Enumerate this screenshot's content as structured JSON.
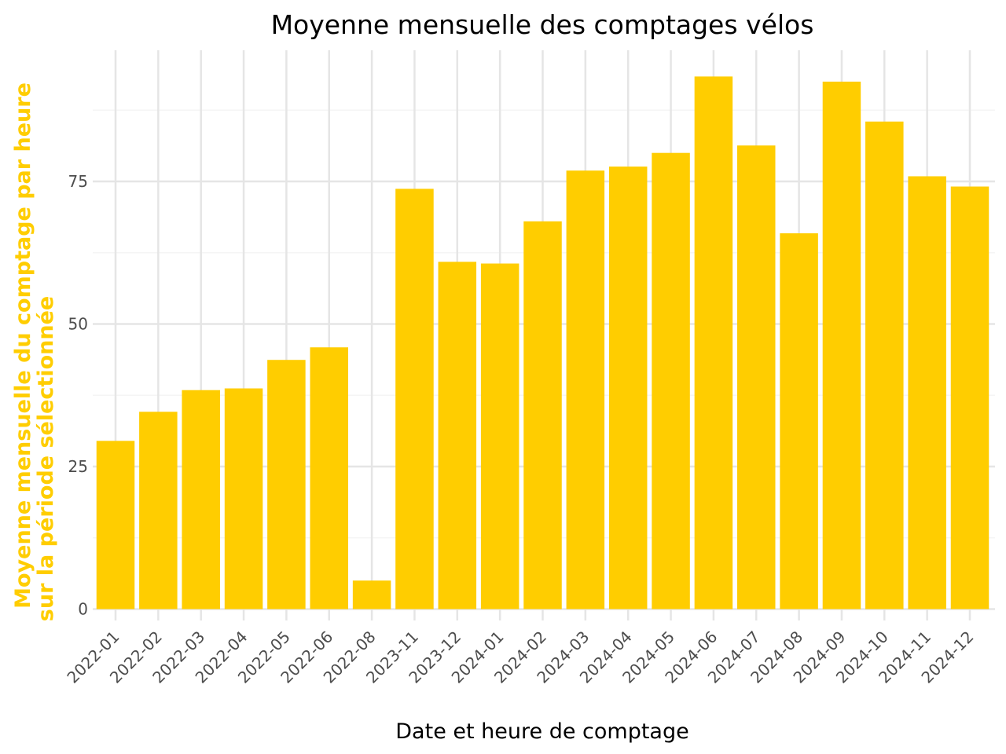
{
  "chart_data": {
    "type": "bar",
    "title": "Moyenne mensuelle des comptages vélos",
    "xlabel": "Date et heure de comptage",
    "ylabel_lines": [
      "Moyenne mensuelle du comptage par heure",
      "sur la période sélectionnée"
    ],
    "categories": [
      "2022-01",
      "2022-02",
      "2022-03",
      "2022-04",
      "2022-05",
      "2022-06",
      "2022-08",
      "2023-11",
      "2023-12",
      "2024-01",
      "2024-02",
      "2024-03",
      "2024-04",
      "2024-05",
      "2024-06",
      "2024-07",
      "2024-08",
      "2024-09",
      "2024-10",
      "2024-11",
      "2024-12"
    ],
    "values": [
      29.5,
      34.6,
      38.4,
      38.7,
      43.7,
      45.9,
      5.0,
      73.7,
      60.9,
      60.6,
      68.0,
      76.9,
      77.6,
      80.0,
      93.4,
      81.3,
      65.9,
      92.5,
      85.5,
      75.9,
      74.1
    ],
    "yticks": [
      0,
      25,
      50,
      75
    ],
    "ytick_labels": [
      "0",
      "25",
      "50",
      "75"
    ],
    "ylim": [
      -2,
      98
    ],
    "grid": true,
    "legend": "none"
  },
  "colors": {
    "bar": "#FFCD00",
    "ylabel": "#FFCD00",
    "grid_major": "#e5e5e5",
    "grid_minor": "#f5f5f5",
    "tick": "#4d4d4d",
    "background": "#ffffff"
  }
}
